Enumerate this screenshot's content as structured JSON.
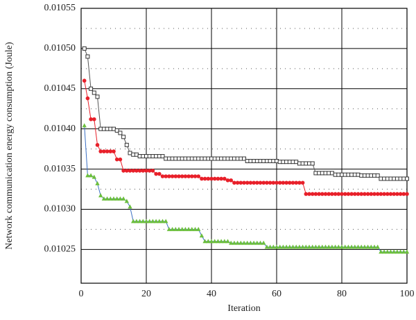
{
  "chart_data": {
    "type": "line",
    "xlabel": "Iteration",
    "ylabel": "Network communication energy consumption (Joule)",
    "x": [
      1,
      2,
      3,
      4,
      5,
      6,
      7,
      8,
      9,
      10,
      11,
      12,
      13,
      14,
      15,
      16,
      17,
      18,
      19,
      20,
      21,
      22,
      23,
      24,
      25,
      26,
      27,
      28,
      29,
      30,
      31,
      32,
      33,
      34,
      35,
      36,
      37,
      38,
      39,
      40,
      41,
      42,
      43,
      44,
      45,
      46,
      47,
      48,
      49,
      50,
      51,
      52,
      53,
      54,
      55,
      56,
      57,
      58,
      59,
      60,
      61,
      62,
      63,
      64,
      65,
      66,
      67,
      68,
      69,
      70,
      71,
      72,
      73,
      74,
      75,
      76,
      77,
      78,
      79,
      80,
      81,
      82,
      83,
      84,
      85,
      86,
      87,
      88,
      89,
      90,
      91,
      92,
      93,
      94,
      95,
      96,
      97,
      98,
      99,
      100
    ],
    "series": [
      {
        "color": "#333333",
        "line_color": "#555555",
        "marker": "square",
        "values": [
          0.0105,
          0.01049,
          0.01045,
          0.010445,
          0.01044,
          0.0104,
          0.0104,
          0.0104,
          0.0104,
          0.0104,
          0.010398,
          0.010395,
          0.01039,
          0.01038,
          0.01037,
          0.010368,
          0.010368,
          0.010366,
          0.010366,
          0.010366,
          0.010366,
          0.010366,
          0.010366,
          0.010366,
          0.010366,
          0.010363,
          0.010363,
          0.010363,
          0.010363,
          0.010363,
          0.010363,
          0.010363,
          0.010363,
          0.010363,
          0.010363,
          0.010363,
          0.010363,
          0.010363,
          0.010363,
          0.010363,
          0.010363,
          0.010363,
          0.010363,
          0.010363,
          0.010363,
          0.010363,
          0.010363,
          0.010363,
          0.010363,
          0.010363,
          0.01036,
          0.01036,
          0.01036,
          0.01036,
          0.01036,
          0.01036,
          0.01036,
          0.01036,
          0.01036,
          0.01036,
          0.010359,
          0.010359,
          0.010359,
          0.010359,
          0.010359,
          0.010359,
          0.010357,
          0.010357,
          0.010357,
          0.010357,
          0.010357,
          0.010345,
          0.010345,
          0.010345,
          0.010345,
          0.010345,
          0.010345,
          0.010343,
          0.010343,
          0.010343,
          0.010343,
          0.010343,
          0.010343,
          0.010343,
          0.010343,
          0.010342,
          0.010342,
          0.010342,
          0.010342,
          0.010342,
          0.010342,
          0.010338,
          0.010338,
          0.010338,
          0.010338,
          0.010338,
          0.010338,
          0.010338,
          0.010338,
          0.010338
        ]
      },
      {
        "color": "#e8202a",
        "line_color": "#e8202a",
        "marker": "circle",
        "values": [
          0.01046,
          0.010438,
          0.010412,
          0.010412,
          0.01038,
          0.010372,
          0.010372,
          0.010372,
          0.010372,
          0.010372,
          0.010362,
          0.010362,
          0.010348,
          0.010348,
          0.010348,
          0.010348,
          0.010348,
          0.010348,
          0.010348,
          0.010348,
          0.010348,
          0.010348,
          0.010344,
          0.010344,
          0.010341,
          0.010341,
          0.010341,
          0.010341,
          0.010341,
          0.010341,
          0.010341,
          0.010341,
          0.010341,
          0.010341,
          0.010341,
          0.010341,
          0.010338,
          0.010338,
          0.010338,
          0.010338,
          0.010338,
          0.010338,
          0.010338,
          0.010338,
          0.010336,
          0.010336,
          0.010333,
          0.010333,
          0.010333,
          0.010333,
          0.010333,
          0.010333,
          0.010333,
          0.010333,
          0.010333,
          0.010333,
          0.010333,
          0.010333,
          0.010333,
          0.010333,
          0.010333,
          0.010333,
          0.010333,
          0.010333,
          0.010333,
          0.010333,
          0.010333,
          0.010333,
          0.010319,
          0.010319,
          0.010319,
          0.010319,
          0.010319,
          0.010319,
          0.010319,
          0.010319,
          0.010319,
          0.010319,
          0.010319,
          0.010319,
          0.010319,
          0.010319,
          0.010319,
          0.010319,
          0.010319,
          0.010319,
          0.010319,
          0.010319,
          0.010319,
          0.010319,
          0.010319,
          0.010319,
          0.010319,
          0.010319,
          0.010319,
          0.010319,
          0.010319,
          0.010319,
          0.010319,
          0.010319
        ]
      },
      {
        "color": "#6cbf3c",
        "line_color": "#3a6fc4",
        "marker": "triangle",
        "values": [
          0.010404,
          0.010342,
          0.010342,
          0.01034,
          0.010332,
          0.010317,
          0.010313,
          0.010313,
          0.010313,
          0.010313,
          0.010313,
          0.010313,
          0.010313,
          0.01031,
          0.010303,
          0.010285,
          0.010285,
          0.010285,
          0.010285,
          0.010285,
          0.010285,
          0.010285,
          0.010285,
          0.010285,
          0.010285,
          0.010285,
          0.010275,
          0.010275,
          0.010275,
          0.010275,
          0.010275,
          0.010275,
          0.010275,
          0.010275,
          0.010275,
          0.010275,
          0.010267,
          0.01026,
          0.01026,
          0.01026,
          0.01026,
          0.01026,
          0.01026,
          0.01026,
          0.01026,
          0.010258,
          0.010258,
          0.010258,
          0.010258,
          0.010258,
          0.010258,
          0.010258,
          0.010258,
          0.010258,
          0.010258,
          0.010258,
          0.010253,
          0.010253,
          0.010253,
          0.010253,
          0.010253,
          0.010253,
          0.010253,
          0.010253,
          0.010253,
          0.010253,
          0.010253,
          0.010253,
          0.010253,
          0.010253,
          0.010253,
          0.010253,
          0.010253,
          0.010253,
          0.010253,
          0.010253,
          0.010253,
          0.010253,
          0.010253,
          0.010253,
          0.010253,
          0.010253,
          0.010253,
          0.010253,
          0.010253,
          0.010253,
          0.010253,
          0.010253,
          0.010253,
          0.010253,
          0.010253,
          0.010247,
          0.010247,
          0.010247,
          0.010247,
          0.010247,
          0.010247,
          0.010247,
          0.010247,
          0.010247
        ]
      }
    ],
    "xlim": [
      0,
      100
    ],
    "xticks": [
      0,
      20,
      40,
      60,
      80,
      100
    ],
    "ylim": [
      0.010208,
      0.01055
    ],
    "yticks": [
      0.01025,
      {
        "value": 0.0103,
        "label": "0.01030"
      },
      0.01035,
      {
        "value": 0.0104,
        "label": "0.01040"
      },
      0.01045,
      {
        "value": 0.0105,
        "label": "0.01050"
      },
      0.01055
    ],
    "minor_yticks": [
      0.010275,
      0.010325,
      0.010375,
      0.010425,
      0.010475,
      0.010525
    ],
    "grid": true
  }
}
